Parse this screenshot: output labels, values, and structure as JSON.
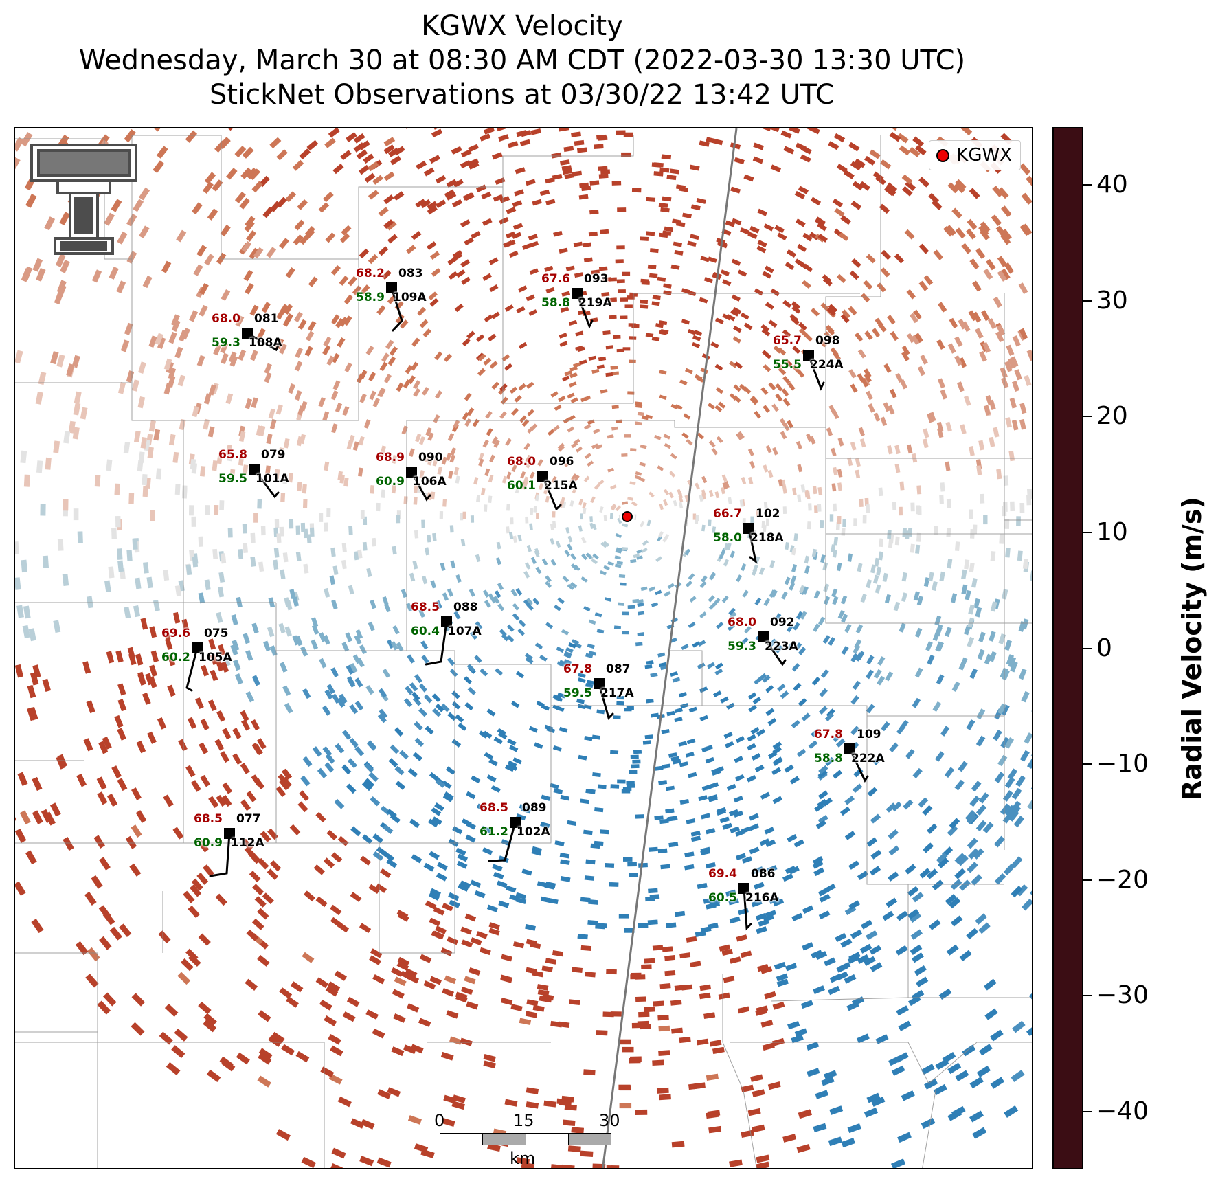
{
  "title": {
    "line1": "KGWX Velocity",
    "line2": "Wednesday, March 30 at 08:30 AM CDT (2022-03-30 13:30 UTC)",
    "line3": "StickNet Observations at 03/30/22 13:42 UTC"
  },
  "legend": {
    "label": "KGWX",
    "marker_color": "#ee0000"
  },
  "colorbar": {
    "title": "Radial Velocity (m/s)",
    "range": [
      -45,
      45
    ],
    "ticks": [
      "40",
      "30",
      "20",
      "10",
      "0",
      "−10",
      "−20",
      "−30",
      "−40"
    ],
    "tick_values": [
      40,
      30,
      20,
      10,
      0,
      -10,
      -20,
      -30,
      -40
    ],
    "colors": [
      "#16163f",
      "#1f3a9c",
      "#1a63c0",
      "#2f7fb6",
      "#6ba3c2",
      "#b9cfd8",
      "#e9e7e6",
      "#e1b2a1",
      "#cd7656",
      "#b8412a",
      "#8e1028",
      "#3b0d14"
    ]
  },
  "scalebar": {
    "labels": [
      "0",
      "15",
      "30"
    ],
    "unit": "km"
  },
  "logo": {
    "name": "texas-tech-double-t"
  },
  "stations": [
    {
      "temp": "68.2",
      "dew": "58.9",
      "num": "083",
      "id": "109A"
    },
    {
      "temp": "67.6",
      "dew": "58.8",
      "num": "093",
      "id": "219A"
    },
    {
      "temp": "68.0",
      "dew": "59.3",
      "num": "081",
      "id": "108A"
    },
    {
      "temp": "65.7",
      "dew": "55.5",
      "num": "098",
      "id": "224A"
    },
    {
      "temp": "65.8",
      "dew": "59.5",
      "num": "079",
      "id": "101A"
    },
    {
      "temp": "68.9",
      "dew": "60.9",
      "num": "090",
      "id": "106A"
    },
    {
      "temp": "68.0",
      "dew": "60.1",
      "num": "096",
      "id": "215A"
    },
    {
      "temp": "66.7",
      "dew": "58.0",
      "num": "102",
      "id": "218A"
    },
    {
      "temp": "68.5",
      "dew": "60.4",
      "num": "088",
      "id": "107A"
    },
    {
      "temp": "69.6",
      "dew": "60.2",
      "num": "075",
      "id": "105A"
    },
    {
      "temp": "68.0",
      "dew": "59.3",
      "num": "092",
      "id": "223A"
    },
    {
      "temp": "67.8",
      "dew": "59.5",
      "num": "087",
      "id": "217A"
    },
    {
      "temp": "67.8",
      "dew": "58.8",
      "num": "109",
      "id": "222A"
    },
    {
      "temp": "68.5",
      "dew": "61.2",
      "num": "089",
      "id": "102A"
    },
    {
      "temp": "68.5",
      "dew": "60.9",
      "num": "077",
      "id": "112A"
    },
    {
      "temp": "69.4",
      "dew": "60.5",
      "num": "086",
      "id": "216A"
    }
  ]
}
